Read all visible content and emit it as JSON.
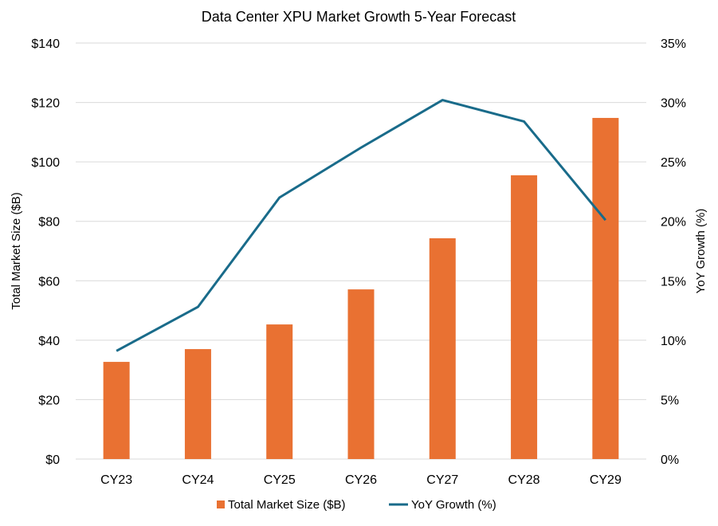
{
  "chart_data": {
    "type": "bar+line",
    "title": "Data Center XPU Market Growth 5-Year Forecast",
    "categories": [
      "CY23",
      "CY24",
      "CY25",
      "CY26",
      "CY27",
      "CY28",
      "CY29"
    ],
    "ylabel_left": "Total Market Size ($B)",
    "ylabel_right": "YoY Growth (%)",
    "ylim_left": [
      0,
      140
    ],
    "ylim_right": [
      0,
      35
    ],
    "yticks_left": [
      "$0",
      "$20",
      "$40",
      "$60",
      "$80",
      "$100",
      "$120",
      "$140"
    ],
    "yticks_right": [
      "0%",
      "5%",
      "10%",
      "15%",
      "20%",
      "25%",
      "30%",
      "35%"
    ],
    "grid": true,
    "legend_position": "bottom",
    "series": [
      {
        "name": "Total Market Size ($B)",
        "type": "bar",
        "axis": "left",
        "color": "#E97132",
        "values": [
          32.7,
          37.0,
          45.3,
          57.1,
          74.3,
          95.5,
          114.8
        ]
      },
      {
        "name": "YoY Growth (%)",
        "type": "line",
        "axis": "right",
        "color": "#196B8A",
        "values": [
          9.1,
          12.8,
          22.0,
          26.2,
          30.2,
          28.4,
          20.1
        ]
      }
    ]
  }
}
